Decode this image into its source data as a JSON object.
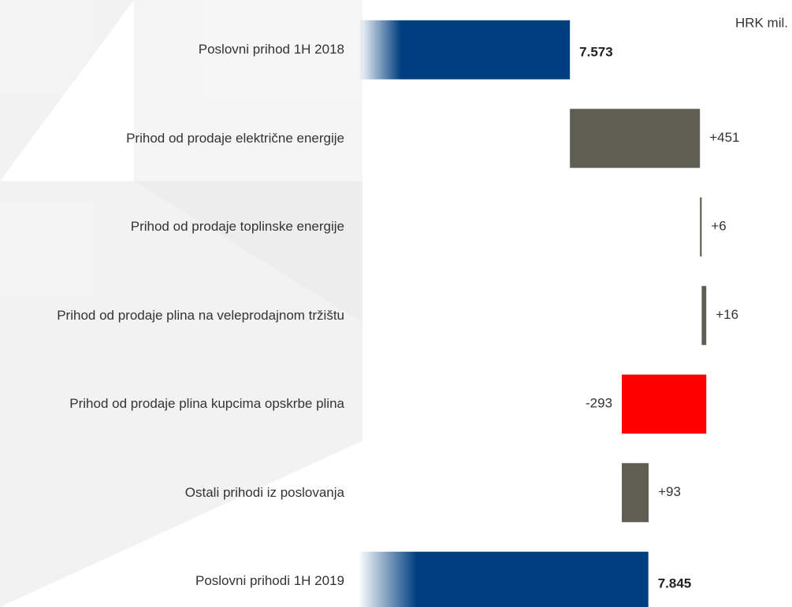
{
  "chart_data": {
    "type": "waterfall",
    "unit": "HRK mil.",
    "categories": [
      "Poslovni prihod 1H 2018",
      "Prihod od prodaje električne energije",
      "Prihod od prodaje toplinske energije",
      "Prihod od prodaje plina na veleprodajnom tržištu",
      "Prihod od prodaje plina kupcima opskrbe plina",
      "Ostali prihodi iz poslovanja",
      "Poslovni prihodi 1H 2019"
    ],
    "values": [
      7573,
      451,
      6,
      16,
      -293,
      93,
      7845
    ],
    "value_labels": [
      "7.573",
      "+451",
      "+6",
      "+16",
      "-293",
      "+93",
      "7.845"
    ],
    "measure": [
      "total",
      "relative",
      "relative",
      "relative",
      "relative",
      "relative",
      "total"
    ],
    "colors": {
      "total": "#003f7f",
      "increase": "#5f5e52",
      "decrease": "#ff0000"
    },
    "xlim": [
      6840,
      8100
    ]
  }
}
